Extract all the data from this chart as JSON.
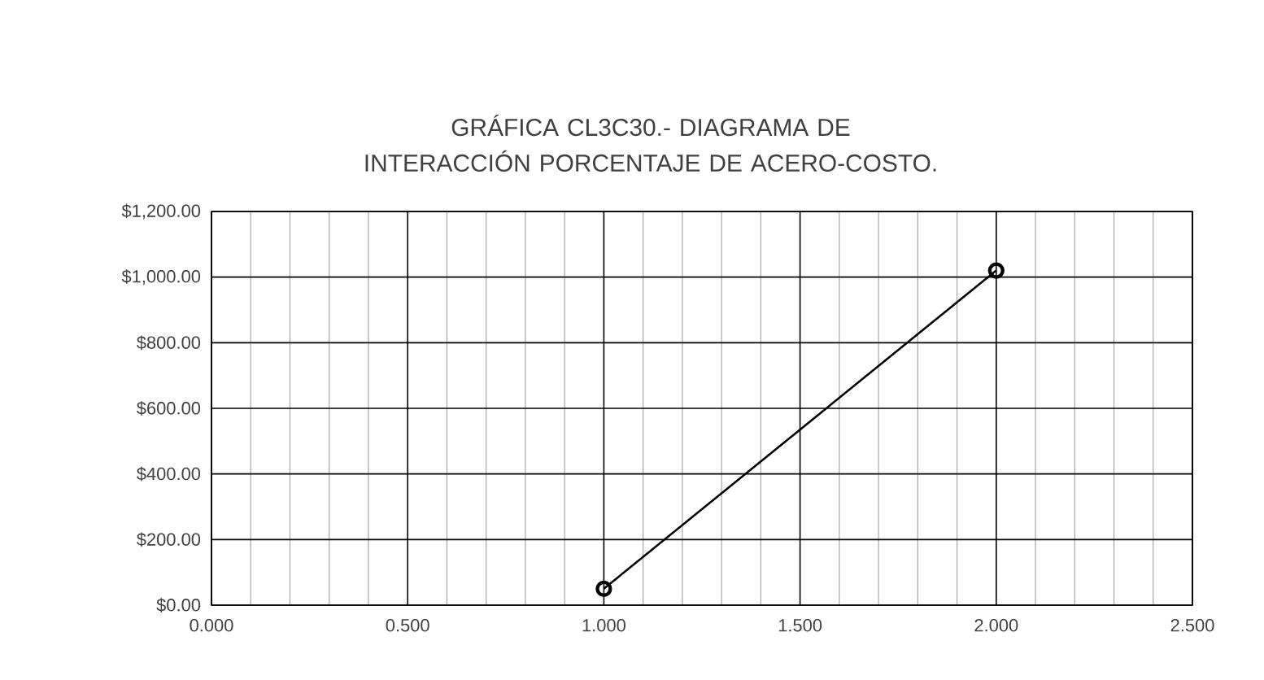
{
  "chart_data": {
    "type": "line",
    "title": "GRÁFICA CL3C30.- DIAGRAMA DE INTERACCIÓN PORCENTAJE DE ACERO-COSTO.",
    "x": [
      1.0,
      2.0
    ],
    "series": [
      {
        "color": "#000000",
        "values": [
          50,
          1020
        ]
      }
    ],
    "marker": "circle",
    "line_style": "solid",
    "grid": true,
    "xlim": [
      0,
      2.5
    ],
    "ylim": [
      0,
      1200
    ],
    "xticks": [
      {
        "value": 0,
        "label": "0.000"
      },
      {
        "value": 0.5,
        "label": "0.500"
      },
      {
        "value": 1,
        "label": "1.000"
      },
      {
        "value": 1.5,
        "label": "1.500"
      },
      {
        "value": 2,
        "label": "2.000"
      },
      {
        "value": 2.5,
        "label": "2.500"
      }
    ],
    "yticks": [
      {
        "value": 0,
        "label": "$0.00"
      },
      {
        "value": 200,
        "label": "$200.00"
      },
      {
        "value": 400,
        "label": "$400.00"
      },
      {
        "value": 600,
        "label": "$600.00"
      },
      {
        "value": 800,
        "label": "$800.00"
      },
      {
        "value": 1000,
        "label": "$1,000.00"
      },
      {
        "value": 1200,
        "label": "$1,200.00"
      }
    ]
  }
}
